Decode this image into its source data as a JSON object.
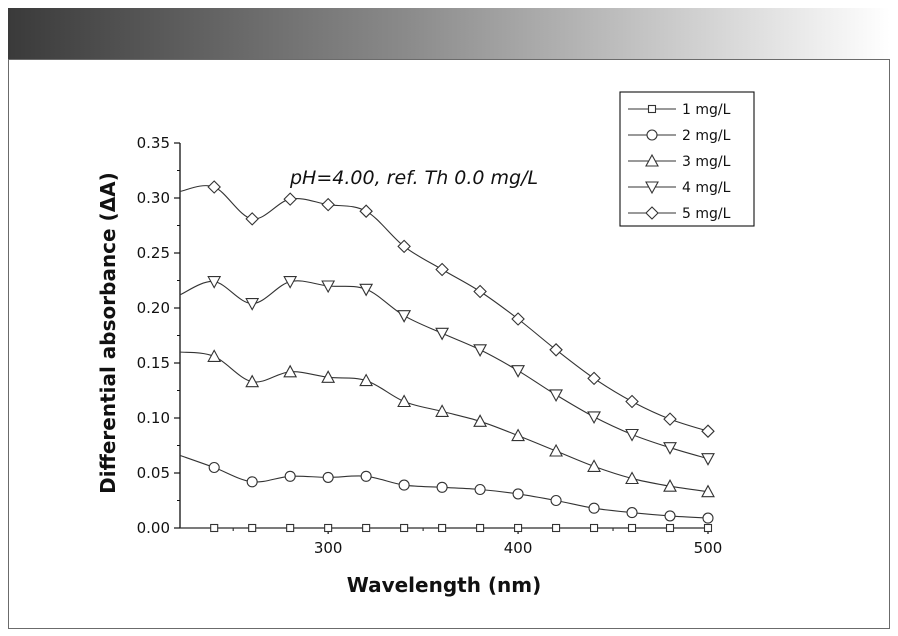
{
  "colors": {
    "header_dark": "#3a3a3a",
    "header_light": "#ffffff",
    "frame_border": "#6b6b6b",
    "series_line": "#333333"
  },
  "chart_data": {
    "type": "line",
    "title": "",
    "annotation": "pH=4.00, ref. Th 0.0 mg/L",
    "xlabel": "Wavelength (nm)",
    "ylabel": "Differential absorbance (ΔA)",
    "xlim": [
      222,
      500
    ],
    "ylim": [
      0,
      0.35
    ],
    "xticks": [
      300,
      400,
      500
    ],
    "xtick_labels": [
      "300",
      "400",
      "500"
    ],
    "yticks": [
      0,
      0.05,
      0.1,
      0.15,
      0.2,
      0.25,
      0.3,
      0.35
    ],
    "ytick_labels": [
      "0.00",
      "0.05",
      "0.10",
      "0.15",
      "0.20",
      "0.25",
      "0.30",
      "0.35"
    ],
    "legend_position": "top-right",
    "x": [
      240,
      260,
      280,
      300,
      320,
      340,
      360,
      380,
      400,
      420,
      440,
      460,
      480,
      500
    ],
    "series": [
      {
        "name": "1 mg/L",
        "marker": "square",
        "start": 0.0,
        "values": [
          0.0,
          0.0,
          0.0,
          0.0,
          0.0,
          0.0,
          0.0,
          0.0,
          0.0,
          0.0,
          0.0,
          0.0,
          0.0,
          0.0
        ]
      },
      {
        "name": "2 mg/L",
        "marker": "circle",
        "start": 0.066,
        "values": [
          0.055,
          0.042,
          0.047,
          0.046,
          0.047,
          0.039,
          0.037,
          0.035,
          0.031,
          0.025,
          0.018,
          0.014,
          0.011,
          0.009
        ]
      },
      {
        "name": "3 mg/L",
        "marker": "triangle-up",
        "start": 0.16,
        "values": [
          0.156,
          0.133,
          0.142,
          0.137,
          0.134,
          0.115,
          0.106,
          0.097,
          0.084,
          0.07,
          0.056,
          0.045,
          0.038,
          0.033
        ]
      },
      {
        "name": "4 mg/L",
        "marker": "triangle-down",
        "start": 0.212,
        "values": [
          0.224,
          0.204,
          0.224,
          0.22,
          0.217,
          0.193,
          0.177,
          0.162,
          0.143,
          0.121,
          0.101,
          0.085,
          0.073,
          0.063
        ]
      },
      {
        "name": "5 mg/L",
        "marker": "diamond",
        "start": 0.306,
        "values": [
          0.31,
          0.281,
          0.299,
          0.294,
          0.288,
          0.256,
          0.235,
          0.215,
          0.19,
          0.162,
          0.136,
          0.115,
          0.099,
          0.088
        ]
      }
    ]
  }
}
